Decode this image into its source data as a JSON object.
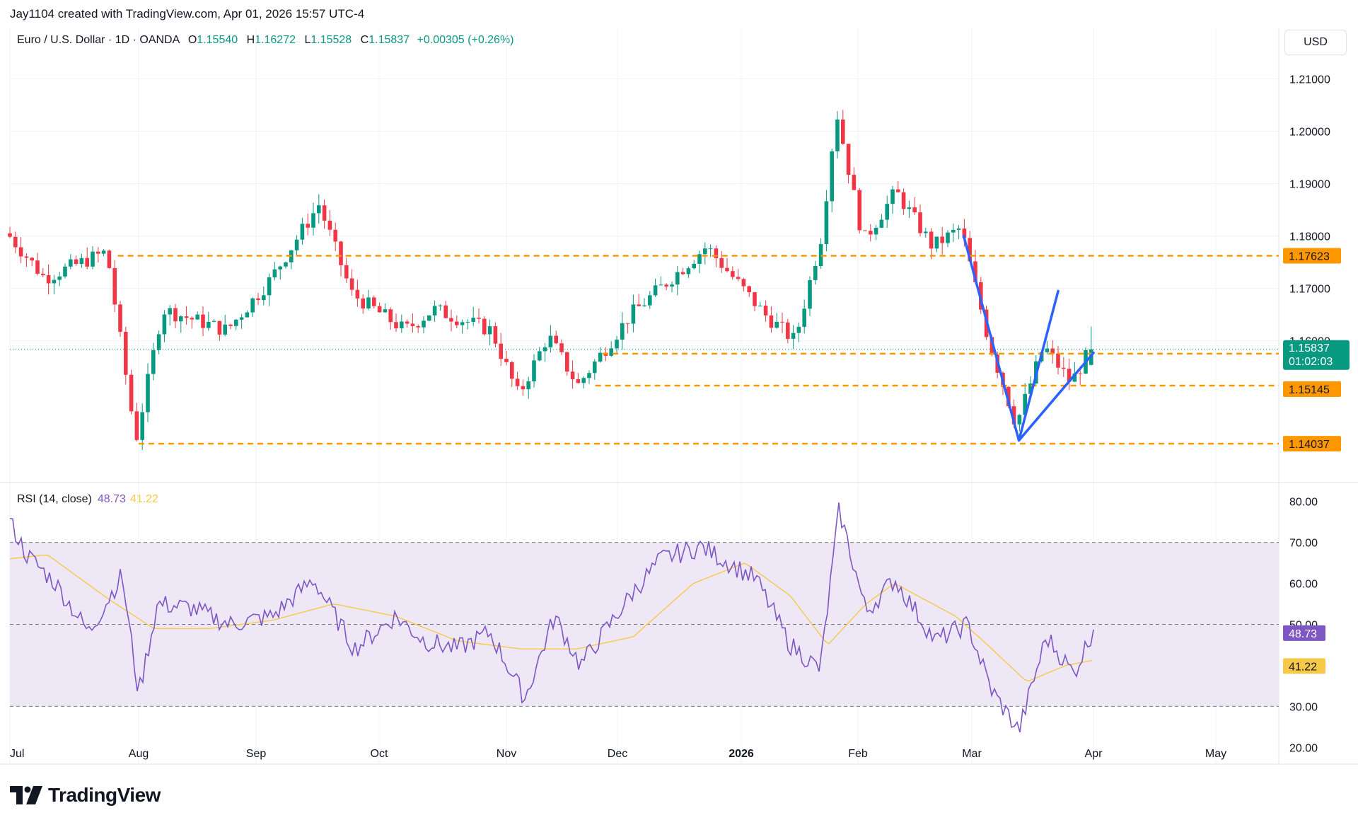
{
  "attribution": "Jay1104 created with TradingView.com, Apr 01, 2026 15:57 UTC-4",
  "legend": {
    "symbol": "Euro / U.S. Dollar · 1D · OANDA",
    "open_label": "O",
    "open": "1.15540",
    "high_label": "H",
    "high": "1.16272",
    "low_label": "L",
    "low": "1.15528",
    "close_label": "C",
    "close": "1.15837",
    "change": "+0.00305 (+0.26%)"
  },
  "currency": "USD",
  "rsi_legend": {
    "name": "RSI (14, close)",
    "rsi": "48.73",
    "ma": "41.22"
  },
  "brand": "TradingView",
  "colors": {
    "up": "#089981",
    "down": "#f23645",
    "level": "#ff9800",
    "pattern": "#2962ff",
    "rsi": "#7e57c2",
    "rsi_ma": "#f7c948",
    "rsi_band": "#ede7f6"
  },
  "chart_data": [
    {
      "type": "candlestick",
      "title": "Euro / U.S. Dollar · 1D · OANDA",
      "x_ticks": [
        "Jul",
        "Aug",
        "Sep",
        "Oct",
        "Nov",
        "Dec",
        "2026",
        "Feb",
        "Mar",
        "Apr",
        "May"
      ],
      "y_ticks": [
        "1.21000",
        "1.20000",
        "1.19000",
        "1.18000",
        "1.17000",
        "1.16000"
      ],
      "ylim": [
        1.1335,
        1.2145
      ],
      "grid": true,
      "anchor_points": [
        {
          "x": "Jul 01",
          "y": 1.1805
        },
        {
          "x": "Jul 10",
          "y": 1.172
        },
        {
          "x": "Jul 25",
          "y": 1.177
        },
        {
          "x": "Aug 01",
          "y": 1.141
        },
        {
          "x": "Aug 08",
          "y": 1.166
        },
        {
          "x": "Aug 25",
          "y": 1.162
        },
        {
          "x": "Sep 05",
          "y": 1.1715
        },
        {
          "x": "Sep 17",
          "y": 1.186
        },
        {
          "x": "Sep 25",
          "y": 1.169
        },
        {
          "x": "Oct 08",
          "y": 1.162
        },
        {
          "x": "Oct 15",
          "y": 1.166
        },
        {
          "x": "Oct 29",
          "y": 1.162
        },
        {
          "x": "Nov 05",
          "y": 1.1495
        },
        {
          "x": "Nov 13",
          "y": 1.161
        },
        {
          "x": "Nov 21",
          "y": 1.1515
        },
        {
          "x": "Dec 05",
          "y": 1.165
        },
        {
          "x": "Dec 24",
          "y": 1.178
        },
        {
          "x": "Jan 08",
          "y": 1.165
        },
        {
          "x": "Jan 16",
          "y": 1.16
        },
        {
          "x": "Jan 23",
          "y": 1.18
        },
        {
          "x": "Jan 27",
          "y": 1.204
        },
        {
          "x": "Feb 03",
          "y": 1.179
        },
        {
          "x": "Feb 11",
          "y": 1.1885
        },
        {
          "x": "Feb 20",
          "y": 1.178
        },
        {
          "x": "Feb 27",
          "y": 1.1815
        },
        {
          "x": "Mar 06",
          "y": 1.16
        },
        {
          "x": "Mar 13",
          "y": 1.144
        },
        {
          "x": "Mar 20",
          "y": 1.159
        },
        {
          "x": "Mar 27",
          "y": 1.152
        },
        {
          "x": "Apr 01",
          "y": 1.1584
        }
      ],
      "horizontal_levels": [
        1.17623,
        1.15754,
        1.15145,
        1.14037
      ],
      "last_price": "1.15837",
      "countdown": "01:02:03",
      "price_labels": [
        "1.17623",
        "1.15754",
        "1.15145",
        "1.14037"
      ],
      "pattern_lines": [
        {
          "from": {
            "x": "Feb 27",
            "y": 1.18
          },
          "to": {
            "x": "Mar 13",
            "y": 1.141
          }
        },
        {
          "from": {
            "x": "Mar 13",
            "y": 1.141
          },
          "to": {
            "x": "Mar 23",
            "y": 1.1695
          }
        },
        {
          "from": {
            "x": "Mar 13",
            "y": 1.141
          },
          "to": {
            "x": "Apr 01",
            "y": 1.1577
          }
        }
      ]
    },
    {
      "type": "line",
      "title": "RSI (14, close)",
      "y_ticks": [
        "80.00",
        "70.00",
        "60.00",
        "50.00",
        "40.00",
        "30.00",
        "20.00"
      ],
      "ylim": [
        18.5,
        81.5
      ],
      "band": [
        30,
        70
      ],
      "series": [
        {
          "name": "RSI",
          "points": [
            {
              "x": "Jul 01",
              "y": 75
            },
            {
              "x": "Jul 05",
              "y": 67
            },
            {
              "x": "Jul 12",
              "y": 60
            },
            {
              "x": "Jul 20",
              "y": 48
            },
            {
              "x": "Jul 28",
              "y": 62
            },
            {
              "x": "Aug 01",
              "y": 33
            },
            {
              "x": "Aug 06",
              "y": 55
            },
            {
              "x": "Aug 15",
              "y": 54
            },
            {
              "x": "Aug 25",
              "y": 50
            },
            {
              "x": "Sep 05",
              "y": 52
            },
            {
              "x": "Sep 15",
              "y": 61
            },
            {
              "x": "Sep 25",
              "y": 44
            },
            {
              "x": "Oct 05",
              "y": 52
            },
            {
              "x": "Oct 12",
              "y": 46
            },
            {
              "x": "Oct 20",
              "y": 44
            },
            {
              "x": "Oct 28",
              "y": 48
            },
            {
              "x": "Nov 06",
              "y": 32
            },
            {
              "x": "Nov 14",
              "y": 52
            },
            {
              "x": "Nov 21",
              "y": 40
            },
            {
              "x": "Dec 05",
              "y": 58
            },
            {
              "x": "Dec 12",
              "y": 66
            },
            {
              "x": "Dec 22",
              "y": 69
            },
            {
              "x": "Jan 05",
              "y": 61
            },
            {
              "x": "Jan 14",
              "y": 45
            },
            {
              "x": "Jan 22",
              "y": 39
            },
            {
              "x": "Jan 27",
              "y": 78
            },
            {
              "x": "Feb 03",
              "y": 53
            },
            {
              "x": "Feb 10",
              "y": 61
            },
            {
              "x": "Feb 20",
              "y": 46
            },
            {
              "x": "Feb 28",
              "y": 50
            },
            {
              "x": "Mar 06",
              "y": 34
            },
            {
              "x": "Mar 13",
              "y": 24
            },
            {
              "x": "Mar 20",
              "y": 47
            },
            {
              "x": "Mar 27",
              "y": 38
            },
            {
              "x": "Apr 01",
              "y": 48.73
            }
          ]
        },
        {
          "name": "RSI-based MA",
          "points": [
            {
              "x": "Jul 01",
              "y": 66
            },
            {
              "x": "Jul 10",
              "y": 67
            },
            {
              "x": "Jul 25",
              "y": 56
            },
            {
              "x": "Aug 05",
              "y": 49
            },
            {
              "x": "Aug 20",
              "y": 49
            },
            {
              "x": "Sep 05",
              "y": 51
            },
            {
              "x": "Sep 20",
              "y": 55
            },
            {
              "x": "Oct 05",
              "y": 52
            },
            {
              "x": "Oct 20",
              "y": 46
            },
            {
              "x": "Nov 05",
              "y": 44
            },
            {
              "x": "Nov 20",
              "y": 44
            },
            {
              "x": "Dec 05",
              "y": 47
            },
            {
              "x": "Dec 20",
              "y": 60
            },
            {
              "x": "Jan 02",
              "y": 65
            },
            {
              "x": "Jan 14",
              "y": 57
            },
            {
              "x": "Jan 24",
              "y": 45
            },
            {
              "x": "Feb 03",
              "y": 55
            },
            {
              "x": "Feb 10",
              "y": 60
            },
            {
              "x": "Feb 25",
              "y": 52
            },
            {
              "x": "Mar 05",
              "y": 45
            },
            {
              "x": "Mar 15",
              "y": 36
            },
            {
              "x": "Mar 25",
              "y": 40
            },
            {
              "x": "Apr 01",
              "y": 41.22
            }
          ]
        }
      ],
      "last_values": [
        "48.73",
        "41.22"
      ]
    }
  ]
}
